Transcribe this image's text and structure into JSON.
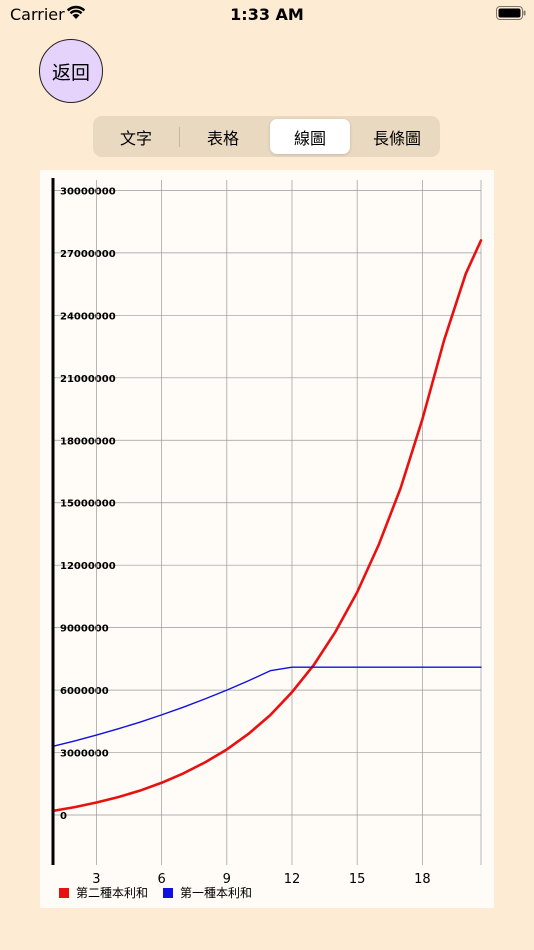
{
  "status_bar": {
    "carrier": "Carrier",
    "time": "1:33 AM"
  },
  "back_button": {
    "label": "返回"
  },
  "segments": [
    {
      "label": "文字",
      "selected": false
    },
    {
      "label": "表格",
      "selected": false
    },
    {
      "label": "線圖",
      "selected": true
    },
    {
      "label": "長條圖",
      "selected": false
    }
  ],
  "colors": {
    "background": "#fdebd3",
    "series_red": "#e81010",
    "series_blue": "#1010e0"
  },
  "chart_data": {
    "type": "line",
    "title": "",
    "xlabel": "",
    "ylabel": "",
    "xlim": [
      1,
      20.7
    ],
    "ylim": [
      -2400000,
      30500000
    ],
    "x_ticks": [
      3,
      6,
      9,
      12,
      15,
      18
    ],
    "y_ticks": [
      0,
      3000000,
      6000000,
      9000000,
      12000000,
      15000000,
      18000000,
      21000000,
      24000000,
      27000000,
      30000000
    ],
    "x_tick_labels": [
      "3",
      "6",
      "9",
      "12",
      "15",
      "18"
    ],
    "y_tick_labels": [
      "0",
      "3000000",
      "6000000",
      "9000000",
      "12000000",
      "15000000",
      "18000000",
      "21000000",
      "24000000",
      "27000000",
      "30000000"
    ],
    "grid": true,
    "legend_position": "bottom-left",
    "series": [
      {
        "name": "第二種本利和",
        "color": "#e81010",
        "x": [
          1,
          2,
          3,
          4,
          5,
          6,
          7,
          8,
          9,
          10,
          11,
          12,
          13,
          14,
          15,
          16,
          17,
          18,
          19,
          20,
          20.7
        ],
        "y": [
          200000,
          380000,
          600000,
          860000,
          1170000,
          1550000,
          2000000,
          2530000,
          3150000,
          3900000,
          4800000,
          5900000,
          7200000,
          8800000,
          10700000,
          13000000,
          15700000,
          19000000,
          22800000,
          26000000,
          27600000
        ]
      },
      {
        "name": "第一種本利和",
        "color": "#1010e0",
        "x": [
          1,
          2,
          3,
          4,
          5,
          6,
          7,
          8,
          9,
          10,
          11,
          12,
          13,
          14,
          15,
          16,
          17,
          18,
          19,
          20,
          20.7
        ],
        "y": [
          3300000,
          3560000,
          3840000,
          4140000,
          4460000,
          4810000,
          5180000,
          5580000,
          6000000,
          6450000,
          6930000,
          7100000,
          7100000,
          7100000,
          7100000,
          7100000,
          7100000,
          7100000,
          7100000,
          7100000,
          7100000
        ]
      }
    ]
  }
}
